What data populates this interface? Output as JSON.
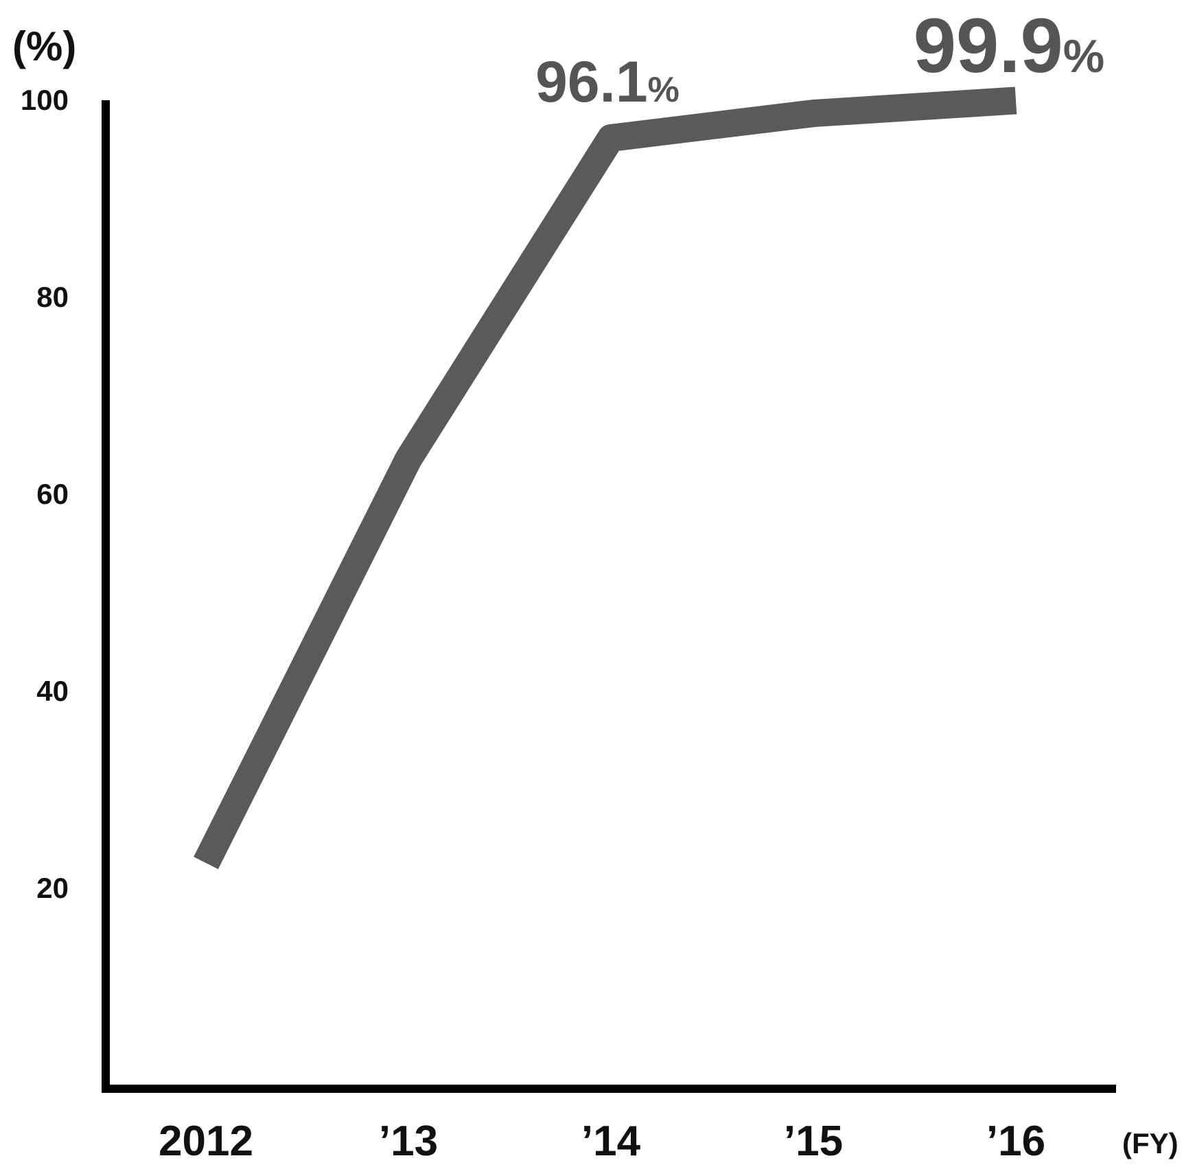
{
  "chart_data": {
    "type": "line",
    "categories": [
      "2012",
      "’13",
      "’14",
      "’15",
      "’16"
    ],
    "series": [
      {
        "values": [
          22.5,
          63.5,
          96.1,
          98.6,
          99.9
        ],
        "color": "#5a5a5a"
      }
    ],
    "ylabel": "(%)",
    "xlabel": "(FY)",
    "yticks": [
      20,
      40,
      60,
      80,
      100
    ],
    "ylim": [
      0,
      100
    ],
    "grid": false,
    "annotations": [
      {
        "index": 2,
        "value": "96.1",
        "unit": "%",
        "size": "medium"
      },
      {
        "index": 4,
        "value": "99.9",
        "unit": "%",
        "size": "large"
      }
    ]
  }
}
